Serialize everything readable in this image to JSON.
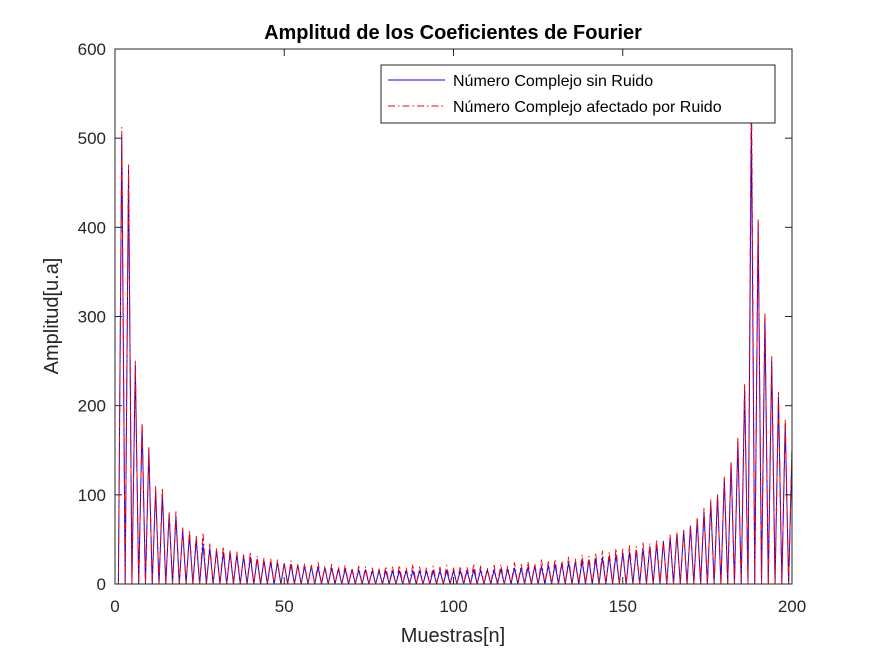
{
  "chart_data": {
    "type": "line",
    "title": "Amplitud de los Coeficientes de Fourier",
    "xlabel": "Muestras[n]",
    "ylabel": "Amplitud[u.a]",
    "xlim": [
      0,
      200
    ],
    "ylim": [
      0,
      600
    ],
    "xticks": [
      0,
      50,
      100,
      150,
      200
    ],
    "yticks": [
      0,
      100,
      200,
      300,
      400,
      500,
      600
    ],
    "grid": false,
    "legend_position": "top-right",
    "peak_samples": [
      2,
      4,
      6,
      8,
      10,
      12,
      14,
      16,
      18,
      20,
      22,
      24,
      26,
      28,
      30,
      32,
      34,
      36,
      38,
      40,
      42,
      44,
      46,
      48,
      50,
      52,
      54,
      56,
      58,
      60,
      62,
      64,
      66,
      68,
      70,
      72,
      74,
      76,
      78,
      80,
      82,
      84,
      86,
      88,
      90,
      92,
      94,
      96,
      98,
      100,
      102,
      104,
      106,
      108,
      110,
      112,
      114,
      116,
      118,
      120,
      122,
      124,
      126,
      128,
      130,
      132,
      134,
      136,
      138,
      140,
      142,
      144,
      146,
      148,
      150,
      152,
      154,
      156,
      158,
      160,
      162,
      164,
      166,
      168,
      170,
      172,
      174,
      176,
      178,
      180,
      182,
      184,
      186,
      188,
      190,
      192,
      194,
      196,
      198,
      200
    ],
    "series": [
      {
        "name": "Número Complejo sin Ruido",
        "color": "#0000ff",
        "style": "solid",
        "values": [
          500,
          465,
          245,
          178,
          150,
          105,
          100,
          78,
          75,
          60,
          55,
          50,
          45,
          40,
          38,
          36,
          35,
          33,
          31,
          30,
          28,
          26,
          25,
          24,
          23,
          22,
          21,
          20,
          20,
          19,
          18,
          18,
          17,
          17,
          16,
          16,
          16,
          15,
          15,
          15,
          15,
          15,
          15,
          15,
          15,
          15,
          15,
          15,
          15,
          15,
          15,
          15,
          16,
          16,
          16,
          16,
          17,
          17,
          18,
          18,
          19,
          20,
          20,
          21,
          22,
          23,
          24,
          25,
          26,
          27,
          28,
          30,
          31,
          33,
          35,
          36,
          38,
          40,
          42,
          45,
          48,
          52,
          56,
          60,
          65,
          72,
          80,
          90,
          100,
          118,
          135,
          160,
          220,
          520,
          405,
          300,
          250,
          210,
          180,
          150
        ]
      },
      {
        "name": "Número Complejo afectado por Ruido",
        "color": "#ff0000",
        "style": "dashdot",
        "values": [
          512,
          470,
          250,
          180,
          153,
          110,
          108,
          80,
          81,
          63,
          60,
          55,
          58,
          45,
          40,
          42,
          38,
          36,
          33,
          36,
          31,
          29,
          28,
          27,
          24,
          26,
          22,
          23,
          21,
          24,
          20,
          22,
          19,
          21,
          18,
          20,
          19,
          18,
          17,
          20,
          19,
          21,
          18,
          22,
          19,
          18,
          20,
          19,
          21,
          18,
          20,
          19,
          23,
          20,
          18,
          21,
          22,
          20,
          24,
          22,
          25,
          23,
          27,
          25,
          28,
          26,
          30,
          28,
          33,
          31,
          35,
          37,
          36,
          40,
          39,
          43,
          42,
          46,
          45,
          50,
          48,
          55,
          58,
          60,
          65,
          75,
          85,
          95,
          100,
          120,
          138,
          165,
          225,
          580,
          410,
          305,
          255,
          215,
          185,
          155
        ]
      }
    ]
  }
}
